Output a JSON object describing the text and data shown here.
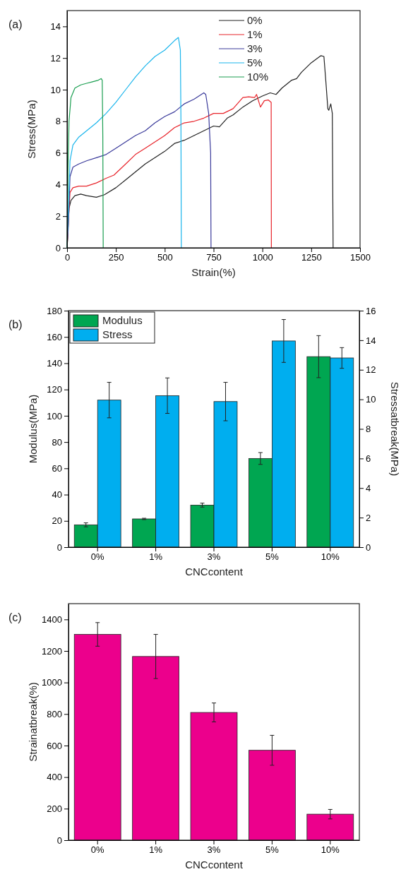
{
  "chart_data": [
    {
      "type": "line",
      "title": "(a)",
      "xlabel": "Strain(%)",
      "ylabel": "Stress(MPa)",
      "xlim": [
        0,
        1500
      ],
      "xticks": [
        0,
        250,
        500,
        750,
        1000,
        1250,
        1500
      ],
      "ylim": [
        0,
        15
      ],
      "yticks": [
        0,
        2,
        4,
        6,
        8,
        10,
        12,
        14
      ],
      "legend": "top right",
      "grid": false,
      "line_style": "solid",
      "series": [
        {
          "name": "0%",
          "color": "#222222",
          "x": [
            0,
            5,
            10,
            20,
            40,
            70,
            100,
            150,
            190,
            250,
            300,
            350,
            400,
            450,
            500,
            550,
            600,
            650,
            700,
            750,
            780,
            820,
            850,
            900,
            950,
            1000,
            1040,
            1070,
            1100,
            1150,
            1175,
            1200,
            1250,
            1300,
            1315,
            1325,
            1335,
            1340,
            1350,
            1358,
            1362
          ],
          "values": [
            0,
            1,
            2.5,
            3,
            3.3,
            3.4,
            3.3,
            3.2,
            3.35,
            3.8,
            4.3,
            4.8,
            5.3,
            5.7,
            6.1,
            6.6,
            6.8,
            7.1,
            7.4,
            7.7,
            7.65,
            8.2,
            8.4,
            8.9,
            9.3,
            9.6,
            9.8,
            9.7,
            10.1,
            10.6,
            10.7,
            11.1,
            11.7,
            12.15,
            12.1,
            10.5,
            8.8,
            8.7,
            9.1,
            8.5,
            0
          ]
        },
        {
          "name": "1%",
          "color": "#e8242b",
          "x": [
            0,
            8,
            15,
            30,
            60,
            100,
            150,
            200,
            240,
            300,
            350,
            400,
            450,
            500,
            550,
            600,
            650,
            700,
            750,
            800,
            850,
            900,
            930,
            960,
            970,
            990,
            1010,
            1030,
            1045,
            1046
          ],
          "values": [
            0,
            2,
            3.5,
            3.8,
            3.9,
            3.9,
            4.1,
            4.4,
            4.6,
            5.3,
            5.9,
            6.3,
            6.7,
            7.1,
            7.6,
            7.9,
            8,
            8.2,
            8.5,
            8.5,
            8.8,
            9.5,
            9.55,
            9.5,
            9.7,
            8.9,
            9.3,
            9.35,
            9.2,
            0
          ]
        },
        {
          "name": "3%",
          "color": "#3b3b9b",
          "x": [
            0,
            8,
            15,
            30,
            60,
            100,
            150,
            200,
            250,
            300,
            350,
            400,
            450,
            500,
            550,
            600,
            650,
            700,
            710,
            725,
            735,
            737
          ],
          "values": [
            0,
            2,
            4.5,
            5.1,
            5.3,
            5.5,
            5.7,
            5.9,
            6.3,
            6.7,
            7.1,
            7.4,
            7.9,
            8.3,
            8.6,
            9.1,
            9.4,
            9.8,
            9.7,
            8.5,
            6,
            0
          ]
        },
        {
          "name": "5%",
          "color": "#1ab5ec",
          "x": [
            0,
            8,
            15,
            30,
            60,
            100,
            150,
            200,
            250,
            300,
            350,
            400,
            450,
            500,
            550,
            570,
            580,
            583,
            585
          ],
          "values": [
            0,
            3,
            5.5,
            6.5,
            7,
            7.4,
            7.9,
            8.5,
            9.2,
            10,
            10.8,
            11.5,
            12.1,
            12.5,
            13.1,
            13.3,
            12.5,
            8,
            0
          ]
        },
        {
          "name": "10%",
          "color": "#1a9e50",
          "x": [
            0,
            5,
            10,
            20,
            40,
            70,
            100,
            130,
            160,
            175,
            180,
            183,
            185
          ],
          "values": [
            0,
            5,
            8,
            9.5,
            10.1,
            10.3,
            10.4,
            10.5,
            10.6,
            10.7,
            10.6,
            7,
            0
          ]
        }
      ]
    },
    {
      "type": "bar",
      "title": "(b)",
      "xlabel": "CNCcontent",
      "ylabel": "Modulus(MPa)",
      "y2label": "Stressatbreak(MPa)",
      "categories": [
        "0%",
        "1%",
        "3%",
        "5%",
        "10%"
      ],
      "ylim": [
        0,
        180
      ],
      "yticks": [
        0,
        20,
        40,
        60,
        80,
        100,
        120,
        140,
        160,
        180
      ],
      "y2lim": [
        0,
        16
      ],
      "y2ticks": [
        0,
        2,
        4,
        6,
        8,
        10,
        12,
        14,
        16
      ],
      "legend": "top left",
      "grid": false,
      "series": [
        {
          "name": "Modulus",
          "color": "#00a651",
          "values": [
            17,
            21.5,
            32,
            67.5,
            145
          ],
          "errors": [
            1.5,
            0.5,
            1.5,
            4.5,
            16
          ]
        },
        {
          "name": "Stress",
          "color": "#00aeef",
          "axis": "y2",
          "values": [
            9.95,
            10.25,
            9.85,
            13.95,
            12.8
          ],
          "errors": [
            1.2,
            1.2,
            1.3,
            1.45,
            0.7
          ]
        }
      ]
    },
    {
      "type": "bar",
      "title": "(c)",
      "xlabel": "CNCcontent",
      "ylabel": "Strainatbreak(%)",
      "categories": [
        "0%",
        "1%",
        "3%",
        "5%",
        "10%"
      ],
      "ylim": [
        0,
        1500
      ],
      "yticks": [
        0,
        200,
        400,
        600,
        800,
        1000,
        1200,
        1400
      ],
      "grid": false,
      "series": [
        {
          "color": "#ec008c",
          "values": [
            1305,
            1165,
            810,
            570,
            165
          ],
          "errors": [
            75,
            140,
            60,
            95,
            30
          ]
        }
      ]
    }
  ]
}
